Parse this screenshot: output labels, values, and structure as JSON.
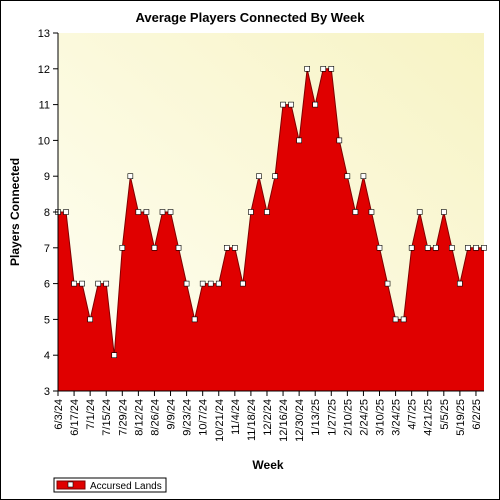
{
  "chart_data": {
    "type": "area",
    "title": "Average Players Connected By Week",
    "xlabel": "Week",
    "ylabel": "Players Connected",
    "ylim": [
      3,
      13
    ],
    "yticks": [
      3,
      4,
      5,
      6,
      7,
      8,
      9,
      10,
      11,
      12,
      13
    ],
    "grid": false,
    "legend_position": "bottom-left",
    "colors": {
      "fill": "#e00000",
      "stroke": "#800000",
      "plot_bg_light": "#fffff4",
      "plot_bg_dark": "#f7f3c4",
      "marker_fill": "#ffffff"
    },
    "x_tick_labels": [
      "6/3/24",
      "6/17/24",
      "7/1/24",
      "7/15/24",
      "7/29/24",
      "8/12/24",
      "8/26/24",
      "9/9/24",
      "9/23/24",
      "10/7/24",
      "10/21/24",
      "11/4/24",
      "11/18/24",
      "12/2/24",
      "12/16/24",
      "12/30/24",
      "1/13/25",
      "1/27/25",
      "2/10/25",
      "2/24/25",
      "3/10/25",
      "3/24/25",
      "4/7/25",
      "4/21/25",
      "5/5/25",
      "5/19/25",
      "6/2/25"
    ],
    "x": [
      "6/3/24",
      "6/10/24",
      "6/17/24",
      "6/24/24",
      "7/1/24",
      "7/8/24",
      "7/15/24",
      "7/22/24",
      "7/29/24",
      "8/5/24",
      "8/12/24",
      "8/19/24",
      "8/26/24",
      "9/2/24",
      "9/9/24",
      "9/16/24",
      "9/23/24",
      "9/30/24",
      "10/7/24",
      "10/14/24",
      "10/21/24",
      "10/28/24",
      "11/4/24",
      "11/11/24",
      "11/18/24",
      "11/25/24",
      "12/2/24",
      "12/9/24",
      "12/16/24",
      "12/23/24",
      "12/30/24",
      "1/6/25",
      "1/13/25",
      "1/20/25",
      "1/27/25",
      "2/3/25",
      "2/10/25",
      "2/17/25",
      "2/24/25",
      "3/3/25",
      "3/10/25",
      "3/17/25",
      "3/24/25",
      "3/31/25",
      "4/7/25",
      "4/14/25",
      "4/21/25",
      "4/28/25",
      "5/5/25",
      "5/12/25",
      "5/19/25",
      "5/26/25",
      "6/2/25",
      "6/9/25"
    ],
    "series": [
      {
        "name": "Accursed Lands",
        "values": [
          8,
          8,
          6,
          6,
          5,
          6,
          6,
          4,
          7,
          9,
          8,
          8,
          7,
          8,
          8,
          7,
          6,
          5,
          6,
          6,
          6,
          7,
          7,
          6,
          8,
          9,
          8,
          9,
          11,
          11,
          10,
          12,
          11,
          12,
          12,
          10,
          9,
          8,
          9,
          8,
          7,
          6,
          5,
          5,
          7,
          8,
          7,
          7,
          8,
          7,
          6,
          7,
          7,
          7
        ]
      }
    ]
  }
}
